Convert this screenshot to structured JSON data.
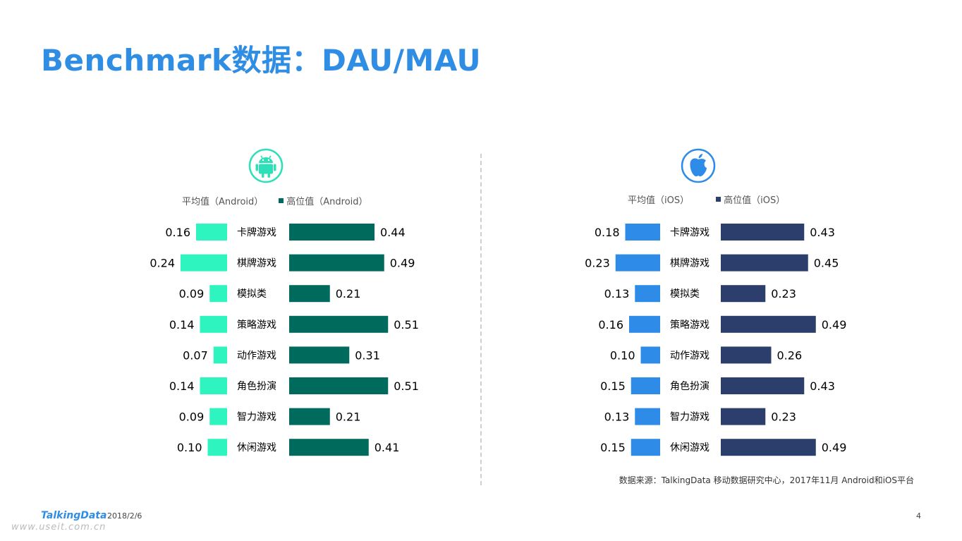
{
  "page": {
    "title": "Benchmark数据：DAU/MAU",
    "source": "数据来源：TalkingData 移动数据研究中心，2017年11月 Android和iOS平台",
    "footer_logo": "TalkingData",
    "footer_date": "2018/2/6",
    "page_number": "4",
    "watermark": "www.useit.com.cn"
  },
  "colors": {
    "title": "#2f8de4",
    "android_avg": "#2ef5c0",
    "android_high": "#006a5c",
    "ios_avg": "#2e8be8",
    "ios_high": "#2c3e6b",
    "android_icon": "#2ee0b8",
    "ios_icon": "#2e8be8"
  },
  "panels": [
    {
      "icon": "android-icon",
      "legend_avg": "平均值（Android）",
      "legend_high": "高位值（Android）"
    },
    {
      "icon": "apple-icon",
      "legend_avg": "平均值（iOS）",
      "legend_high": "高位值（iOS）"
    }
  ],
  "chart_data": [
    {
      "type": "bar",
      "orientation": "horizontal-diverging",
      "categories": [
        "卡牌游戏",
        "棋牌游戏",
        "模拟类",
        "策略游戏",
        "动作游戏",
        "角色扮演",
        "智力游戏",
        "休闲游戏"
      ],
      "series": [
        {
          "name": "平均值（Android）",
          "values": [
            0.16,
            0.24,
            0.09,
            0.14,
            0.07,
            0.14,
            0.09,
            0.1
          ],
          "labels": [
            "0.16",
            "0.24",
            "0.09",
            "0.14",
            "0.07",
            "0.14",
            "0.09",
            "0.10"
          ]
        },
        {
          "name": "高位值（Android）",
          "values": [
            0.44,
            0.49,
            0.21,
            0.51,
            0.31,
            0.51,
            0.21,
            0.41
          ],
          "labels": [
            "0.44",
            "0.49",
            "0.21",
            "0.51",
            "0.31",
            "0.51",
            "0.21",
            "0.41"
          ]
        }
      ],
      "legend_position": "top",
      "grid": false
    },
    {
      "type": "bar",
      "orientation": "horizontal-diverging",
      "categories": [
        "卡牌游戏",
        "棋牌游戏",
        "模拟类",
        "策略游戏",
        "动作游戏",
        "角色扮演",
        "智力游戏",
        "休闲游戏"
      ],
      "series": [
        {
          "name": "平均值（iOS）",
          "values": [
            0.18,
            0.23,
            0.13,
            0.16,
            0.1,
            0.15,
            0.13,
            0.15
          ],
          "labels": [
            "0.18",
            "0.23",
            "0.13",
            "0.16",
            "0.10",
            "0.15",
            "0.13",
            "0.15"
          ]
        },
        {
          "name": "高位值（iOS）",
          "values": [
            0.43,
            0.45,
            0.23,
            0.49,
            0.26,
            0.43,
            0.23,
            0.49
          ],
          "labels": [
            "0.43",
            "0.45",
            "0.23",
            "0.49",
            "0.26",
            "0.43",
            "0.23",
            "0.49"
          ]
        }
      ],
      "legend_position": "top",
      "grid": false
    }
  ]
}
